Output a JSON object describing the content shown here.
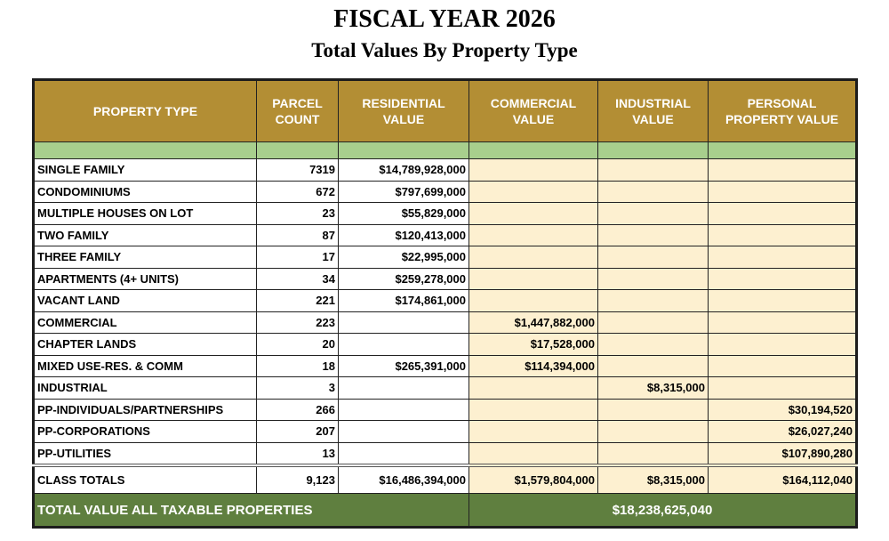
{
  "header": {
    "title": "FISCAL YEAR 2026",
    "subtitle": "Total Values By Property Type"
  },
  "table": {
    "columns": [
      "PROPERTY TYPE",
      "PARCEL COUNT",
      "RESIDENTIAL VALUE",
      "COMMERCIAL VALUE",
      "INDUSTRIAL VALUE",
      "PERSONAL PROPERTY VALUE"
    ],
    "rows": [
      [
        "SINGLE FAMILY",
        "7319",
        "$14,789,928,000",
        null,
        null,
        null
      ],
      [
        "CONDOMINIUMS",
        "672",
        "$797,699,000",
        null,
        null,
        null
      ],
      [
        "MULTIPLE HOUSES ON LOT",
        "23",
        "$55,829,000",
        null,
        null,
        null
      ],
      [
        "TWO FAMILY",
        "87",
        "$120,413,000",
        null,
        null,
        null
      ],
      [
        "THREE FAMILY",
        "17",
        "$22,995,000",
        null,
        null,
        null
      ],
      [
        "APARTMENTS (4+ UNITS)",
        "34",
        "$259,278,000",
        null,
        null,
        null
      ],
      [
        "VACANT LAND",
        "221",
        "$174,861,000",
        null,
        null,
        null
      ],
      [
        "COMMERCIAL",
        "223",
        null,
        "$1,447,882,000",
        null,
        null
      ],
      [
        "CHAPTER LANDS",
        "20",
        null,
        "$17,528,000",
        null,
        null
      ],
      [
        "MIXED USE-RES. & COMM",
        "18",
        "$265,391,000",
        "$114,394,000",
        null,
        null
      ],
      [
        "INDUSTRIAL",
        "3",
        null,
        null,
        "$8,315,000",
        null
      ],
      [
        "PP-INDIVIDUALS/PARTNERSHIPS",
        "266",
        null,
        null,
        null,
        "$30,194,520"
      ],
      [
        "PP-CORPORATIONS",
        "207",
        null,
        null,
        null,
        "$26,027,240"
      ],
      [
        "PP-UTILITIES",
        "13",
        null,
        null,
        null,
        "$107,890,280"
      ]
    ],
    "totals": [
      "CLASS TOTALS",
      "9,123",
      "$16,486,394,000",
      "$1,579,804,000",
      "$8,315,000",
      "$164,112,040"
    ],
    "grand_total": {
      "label": "TOTAL VALUE ALL TAXABLE PROPERTIES",
      "value": "$18,238,625,040"
    }
  }
}
